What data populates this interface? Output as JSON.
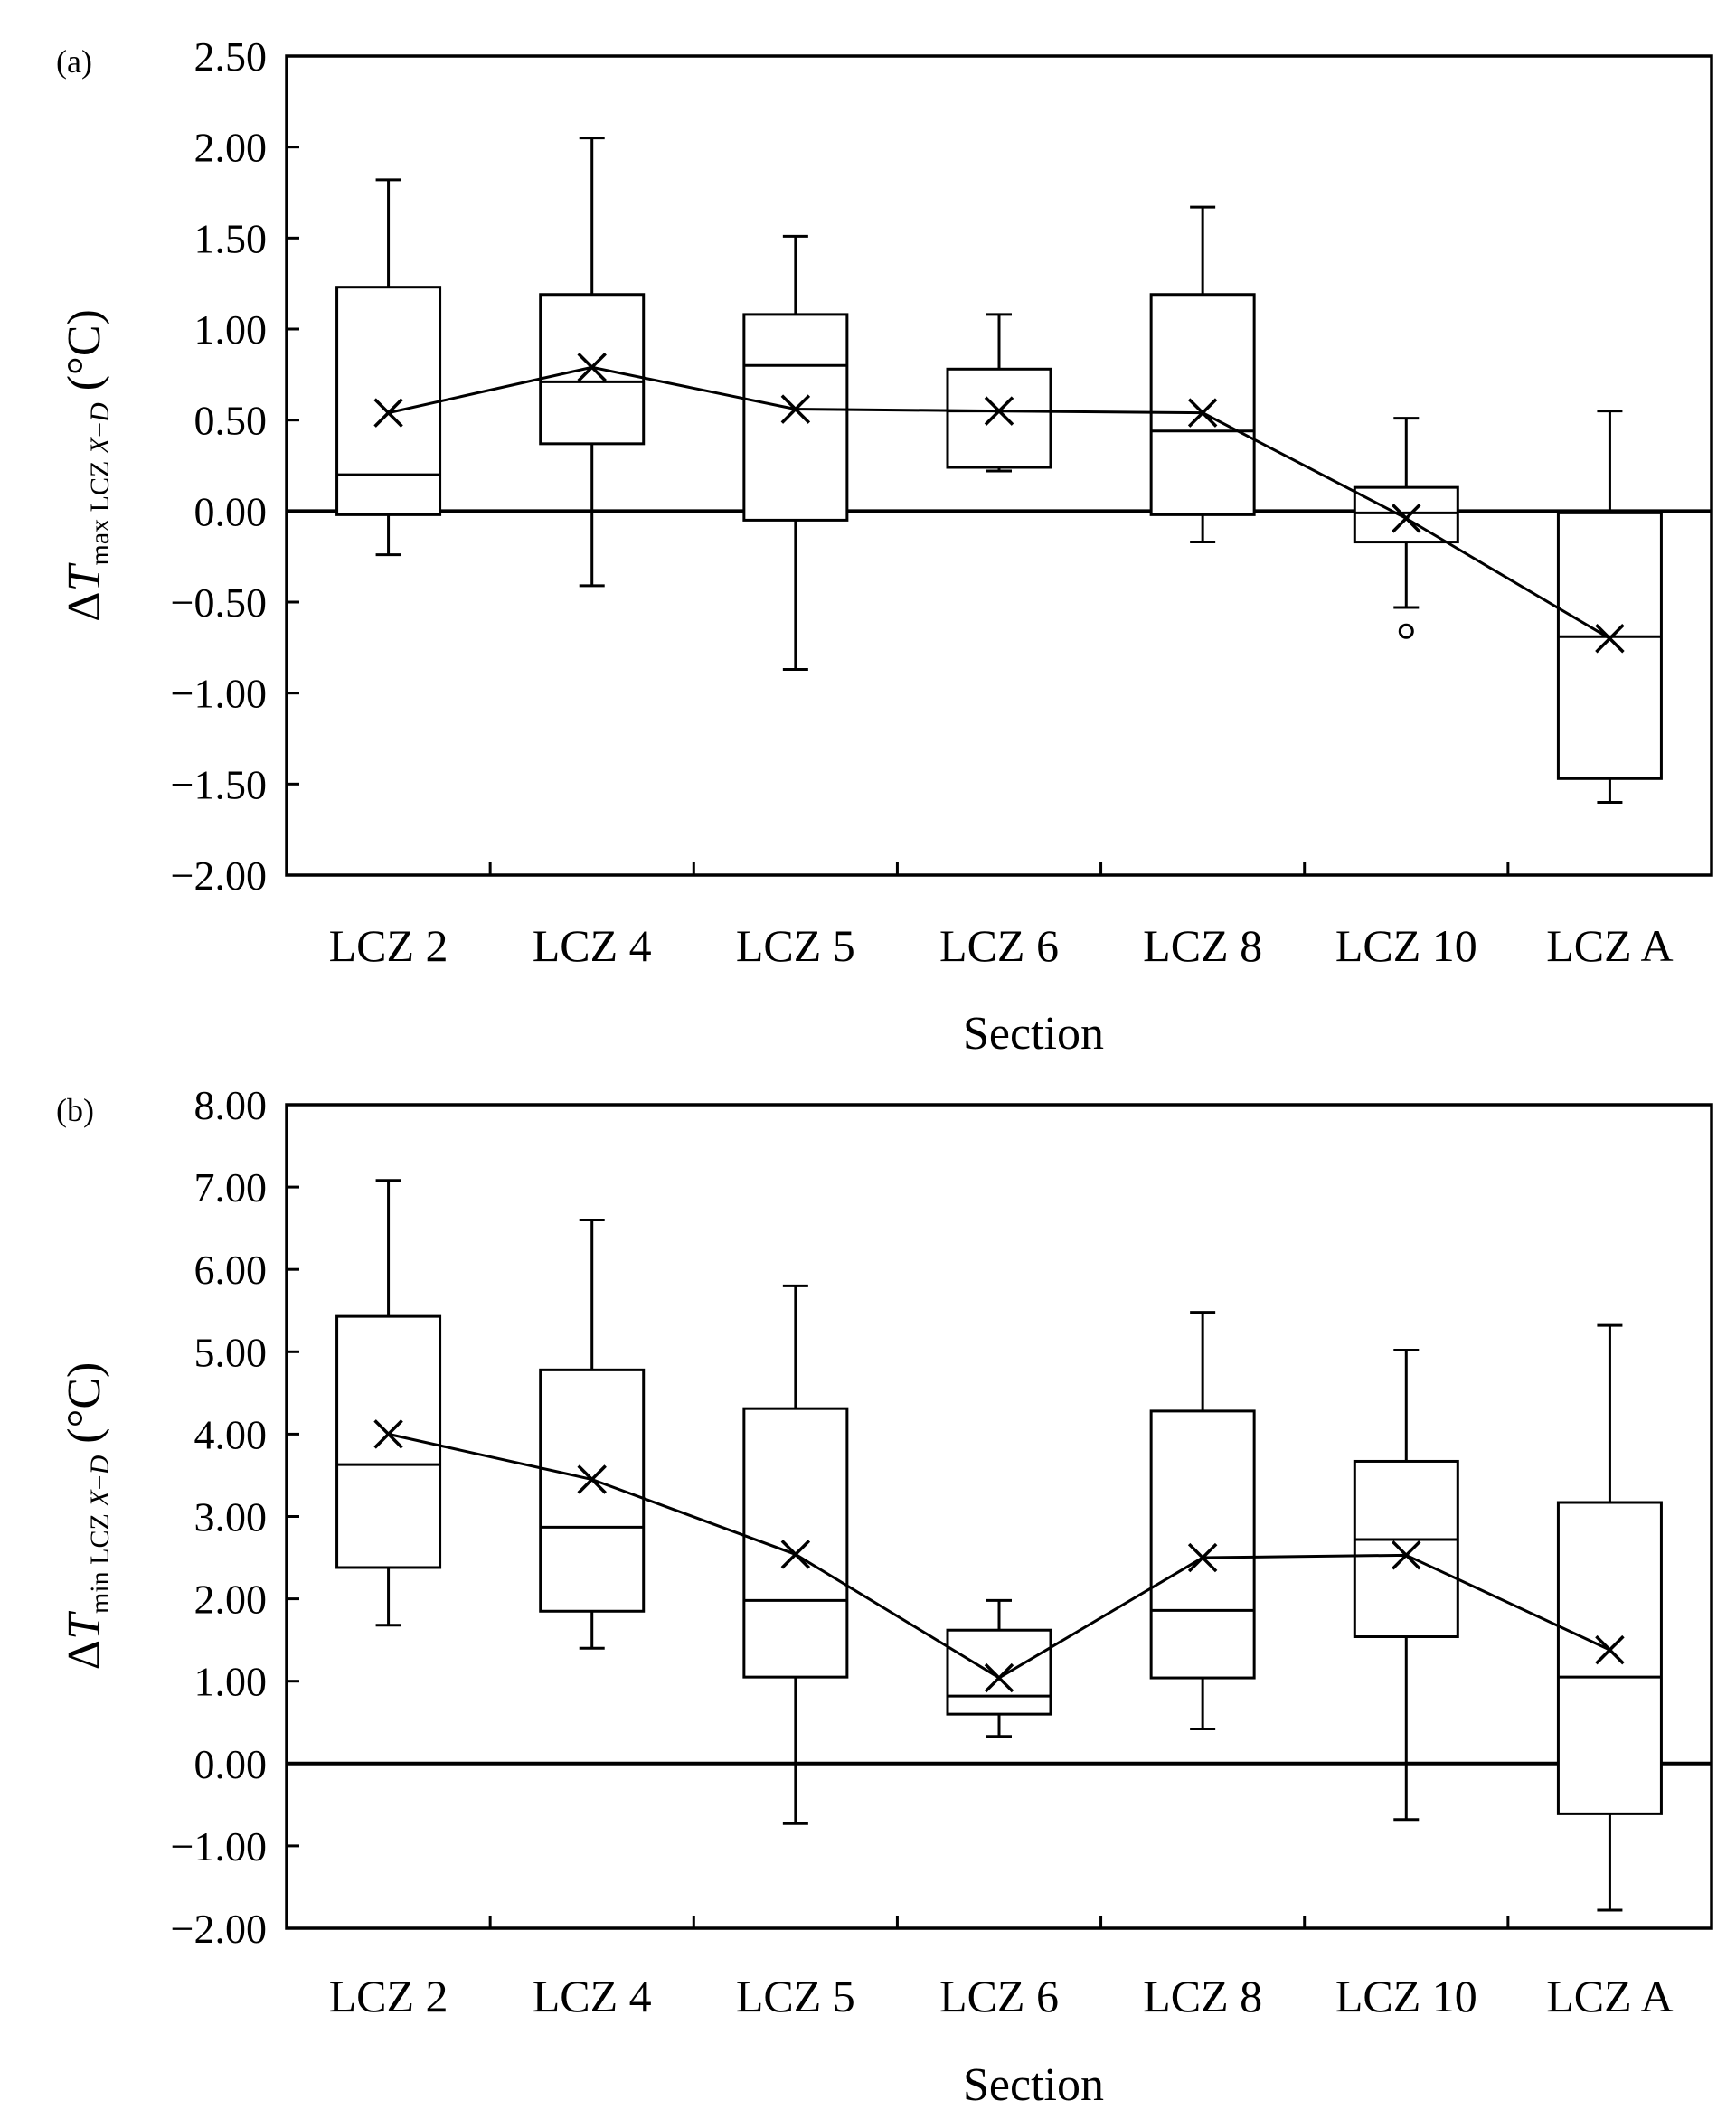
{
  "chart_data": [
    {
      "type": "boxplot",
      "panel_label": "(a)",
      "ylabel": {
        "delta": "Δ",
        "var": "T",
        "sub_a": "max LCZ ",
        "sub_b": "X",
        "sub_c": "−",
        "sub_d": "D",
        "unit": " (°C)"
      },
      "xlabel": "Section",
      "ylim": [
        -2.0,
        2.5
      ],
      "yticks": [
        -2.0,
        -1.5,
        -1.0,
        -0.5,
        0.0,
        0.5,
        1.0,
        1.5,
        2.0,
        2.5
      ],
      "ytick_labels": [
        "−2.00",
        "−1.50",
        "−1.00",
        "−0.50",
        "0.00",
        "0.50",
        "1.00",
        "1.50",
        "2.00",
        "2.50"
      ],
      "categories": [
        "LCZ 2",
        "LCZ 4",
        "LCZ 5",
        "LCZ 6",
        "LCZ 8",
        "LCZ 10",
        "LCZ A"
      ],
      "boxes": [
        {
          "whisker_low": -0.24,
          "q1": -0.02,
          "median": 0.2,
          "q3": 1.23,
          "whisker_high": 1.82,
          "mean": 0.54,
          "outliers": []
        },
        {
          "whisker_low": -0.41,
          "q1": 0.37,
          "median": 0.71,
          "q3": 1.19,
          "whisker_high": 2.05,
          "mean": 0.79,
          "outliers": []
        },
        {
          "whisker_low": -0.87,
          "q1": -0.05,
          "median": 0.8,
          "q3": 1.08,
          "whisker_high": 1.51,
          "mean": 0.56,
          "outliers": []
        },
        {
          "whisker_low": 0.22,
          "q1": 0.24,
          "median": 0.55,
          "q3": 0.78,
          "whisker_high": 1.08,
          "mean": 0.55,
          "outliers": []
        },
        {
          "whisker_low": -0.17,
          "q1": -0.02,
          "median": 0.44,
          "q3": 1.19,
          "whisker_high": 1.67,
          "mean": 0.54,
          "outliers": []
        },
        {
          "whisker_low": -0.53,
          "q1": -0.17,
          "median": -0.01,
          "q3": 0.13,
          "whisker_high": 0.51,
          "mean": -0.04,
          "outliers": [
            -0.66
          ]
        },
        {
          "whisker_low": -1.6,
          "q1": -1.47,
          "median": -0.69,
          "q3": -0.01,
          "whisker_high": 0.55,
          "mean": -0.7,
          "outliers": []
        }
      ]
    },
    {
      "type": "boxplot",
      "panel_label": "(b)",
      "ylabel": {
        "delta": "Δ",
        "var": "T",
        "sub_a": "min LCZ ",
        "sub_b": "X",
        "sub_c": "−",
        "sub_d": "D",
        "unit": " (°C)"
      },
      "xlabel": "Section",
      "ylim": [
        -2.0,
        8.0
      ],
      "yticks": [
        -2.0,
        -1.0,
        0.0,
        1.0,
        2.0,
        3.0,
        4.0,
        5.0,
        6.0,
        7.0,
        8.0
      ],
      "ytick_labels": [
        "−2.00",
        "−1.00",
        "0.00",
        "1.00",
        "2.00",
        "3.00",
        "4.00",
        "5.00",
        "6.00",
        "7.00",
        "8.00"
      ],
      "categories": [
        "LCZ 2",
        "LCZ 4",
        "LCZ 5",
        "LCZ 6",
        "LCZ 8",
        "LCZ 10",
        "LCZ A"
      ],
      "boxes": [
        {
          "whisker_low": 1.68,
          "q1": 2.38,
          "median": 3.63,
          "q3": 5.43,
          "whisker_high": 7.08,
          "mean": 4.0,
          "outliers": []
        },
        {
          "whisker_low": 1.4,
          "q1": 1.85,
          "median": 2.87,
          "q3": 4.78,
          "whisker_high": 6.6,
          "mean": 3.45,
          "outliers": []
        },
        {
          "whisker_low": -0.73,
          "q1": 1.05,
          "median": 1.98,
          "q3": 4.31,
          "whisker_high": 5.8,
          "mean": 2.54,
          "outliers": []
        },
        {
          "whisker_low": 0.33,
          "q1": 0.6,
          "median": 0.82,
          "q3": 1.62,
          "whisker_high": 1.98,
          "mean": 1.04,
          "outliers": []
        },
        {
          "whisker_low": 0.42,
          "q1": 1.04,
          "median": 1.86,
          "q3": 4.28,
          "whisker_high": 5.48,
          "mean": 2.5,
          "outliers": []
        },
        {
          "whisker_low": -0.68,
          "q1": 1.54,
          "median": 2.72,
          "q3": 3.67,
          "whisker_high": 5.02,
          "mean": 2.53,
          "outliers": []
        },
        {
          "whisker_low": -1.78,
          "q1": -0.61,
          "median": 1.05,
          "q3": 3.17,
          "whisker_high": 5.32,
          "mean": 1.38,
          "outliers": []
        }
      ]
    }
  ]
}
